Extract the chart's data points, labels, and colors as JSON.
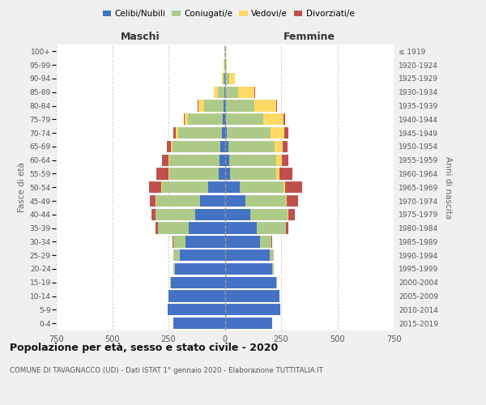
{
  "age_groups": [
    "0-4",
    "5-9",
    "10-14",
    "15-19",
    "20-24",
    "25-29",
    "30-34",
    "35-39",
    "40-44",
    "45-49",
    "50-54",
    "55-59",
    "60-64",
    "65-69",
    "70-74",
    "75-79",
    "80-84",
    "85-89",
    "90-94",
    "95-99",
    "100+"
  ],
  "birth_years": [
    "2015-2019",
    "2010-2014",
    "2005-2009",
    "2000-2004",
    "1995-1999",
    "1990-1994",
    "1985-1989",
    "1980-1984",
    "1975-1979",
    "1970-1974",
    "1965-1969",
    "1960-1964",
    "1955-1959",
    "1950-1954",
    "1945-1949",
    "1940-1944",
    "1935-1939",
    "1930-1934",
    "1925-1929",
    "1920-1924",
    "≤ 1919"
  ],
  "males_celibe": [
    230,
    255,
    250,
    240,
    220,
    200,
    175,
    160,
    130,
    110,
    75,
    28,
    22,
    18,
    12,
    8,
    5,
    2,
    1,
    0,
    0
  ],
  "males_coniugato": [
    0,
    0,
    1,
    2,
    8,
    28,
    55,
    138,
    178,
    195,
    205,
    220,
    225,
    215,
    195,
    155,
    85,
    28,
    8,
    3,
    1
  ],
  "males_vedovo": [
    0,
    0,
    0,
    0,
    0,
    0,
    0,
    0,
    0,
    1,
    1,
    2,
    3,
    5,
    9,
    14,
    28,
    18,
    5,
    1,
    0
  ],
  "males_divorziato": [
    0,
    0,
    0,
    0,
    0,
    1,
    3,
    8,
    18,
    28,
    55,
    55,
    28,
    18,
    14,
    5,
    3,
    1,
    0,
    0,
    0
  ],
  "females_nubile": [
    212,
    248,
    242,
    230,
    212,
    198,
    158,
    142,
    115,
    90,
    65,
    25,
    20,
    15,
    10,
    6,
    5,
    3,
    2,
    0,
    0
  ],
  "females_coniugata": [
    0,
    0,
    1,
    2,
    6,
    18,
    48,
    128,
    165,
    180,
    195,
    205,
    210,
    205,
    195,
    165,
    125,
    55,
    16,
    5,
    2
  ],
  "females_vedova": [
    0,
    0,
    0,
    0,
    0,
    0,
    0,
    1,
    2,
    4,
    7,
    12,
    22,
    38,
    58,
    88,
    98,
    75,
    28,
    5,
    1
  ],
  "females_divorziata": [
    0,
    0,
    0,
    0,
    0,
    2,
    4,
    10,
    28,
    52,
    78,
    58,
    32,
    22,
    18,
    8,
    5,
    2,
    0,
    0,
    0
  ],
  "color_celibe": "#4472C4",
  "color_coniugato": "#AECA89",
  "color_vedovo": "#FFD966",
  "color_divorziato": "#C0504D",
  "xlim": 750,
  "title": "Popolazione per età, sesso e stato civile - 2020",
  "subtitle": "COMUNE DI TAVAGNACCO (UD) - Dati ISTAT 1° gennaio 2020 - Elaborazione TUTTITALIA.IT",
  "legend_labels": [
    "Celibi/Nubili",
    "Coniugati/e",
    "Vedovi/e",
    "Divorziati/e"
  ],
  "maschi_label": "Maschi",
  "femmine_label": "Femmine",
  "fasce_label": "Fasce di età",
  "anni_label": "Anni di nascita",
  "bg_color": "#f0f0f0"
}
